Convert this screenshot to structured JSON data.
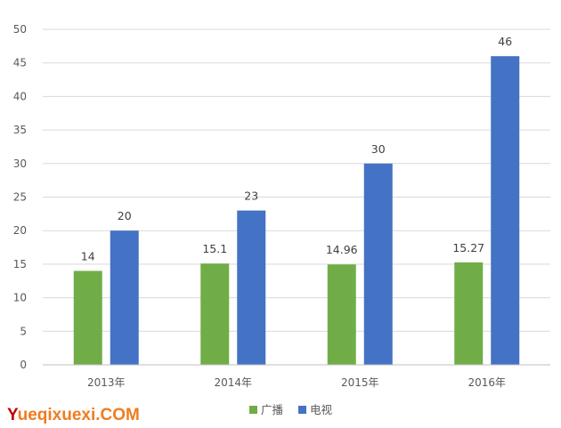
{
  "chart_data": {
    "type": "bar",
    "categories": [
      "2013年",
      "2014年",
      "2015年",
      "2016年"
    ],
    "series": [
      {
        "name": "广播",
        "values": [
          14,
          15.1,
          14.96,
          15.27
        ],
        "labels": [
          "14",
          "15.1",
          "14.96",
          "15.27"
        ],
        "color": "#70AD47"
      },
      {
        "name": "电视",
        "values": [
          20,
          23,
          30,
          46
        ],
        "labels": [
          "20",
          "23",
          "30",
          "46"
        ],
        "color": "#4472C4"
      }
    ],
    "ylim": [
      0,
      50
    ],
    "yticks": [
      0,
      5,
      10,
      15,
      20,
      25,
      30,
      35,
      40,
      45,
      50
    ],
    "grid": true,
    "legend": "bottom-center"
  },
  "watermark": {
    "text": "Yueqixuexi.COM",
    "colors": {
      "first_letter": "#C00000",
      "rest": "#F07C1F"
    }
  }
}
